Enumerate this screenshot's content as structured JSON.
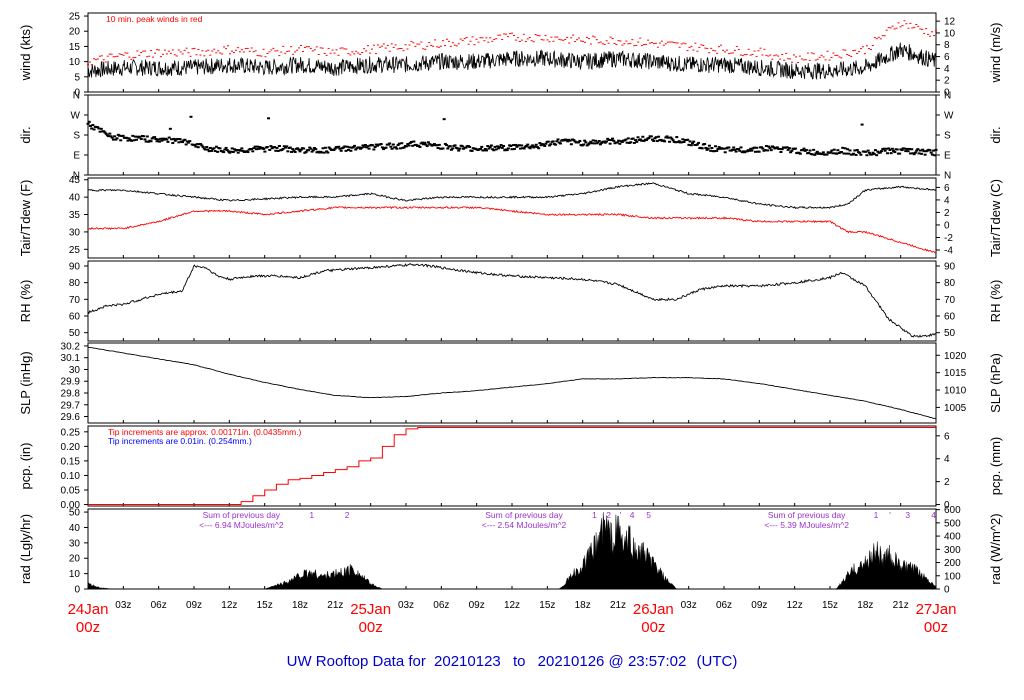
{
  "footer": {
    "prefix": "UW Rooftop Data for",
    "start": "20210123",
    "to": "to",
    "end": "20210126 @ 23:57:02",
    "tz": "(UTC)"
  },
  "colors": {
    "red": "#ff0000",
    "blue": "#0000ff",
    "purple": "#9933cc",
    "navy": "#0000cc",
    "black": "#000000"
  },
  "time_axis": {
    "hours_total": 72,
    "minor_ticks": [
      "03z",
      "06z",
      "09z",
      "12z",
      "15z",
      "18z",
      "21z"
    ],
    "day_labels": [
      {
        "hour": 0,
        "date": "24Jan",
        "z": "00z"
      },
      {
        "hour": 24,
        "date": "25Jan",
        "z": "00z"
      },
      {
        "hour": 48,
        "date": "26Jan",
        "z": "00z"
      },
      {
        "hour": 72,
        "date": "27Jan",
        "z": "00z"
      }
    ]
  },
  "chart_data": [
    {
      "type": "line",
      "panel": "wind",
      "ylabel_left": "wind (kts)",
      "ylabel_right": "wind (m/s)",
      "ylim": [
        0,
        26
      ],
      "left_ticks": [
        0,
        5,
        10,
        15,
        20,
        25
      ],
      "right_ticks": [
        0,
        2,
        4,
        6,
        8,
        10,
        12
      ],
      "annotation": "10 min. peak winds in red",
      "series": [
        {
          "x": [
            0,
            3,
            6,
            9,
            12,
            15,
            18,
            21,
            24,
            27,
            30,
            33,
            36,
            39,
            42,
            45,
            48,
            51,
            54,
            57,
            60,
            63,
            66,
            69,
            72
          ],
          "values": [
            7,
            8,
            8,
            8,
            9,
            8,
            9,
            8,
            9,
            9,
            10,
            10,
            11,
            11,
            10,
            11,
            10,
            9,
            9,
            8,
            7,
            7,
            8,
            14,
            10
          ]
        },
        {
          "x": [
            0,
            3,
            6,
            9,
            12,
            15,
            18,
            21,
            24,
            27,
            30,
            33,
            36,
            39,
            42,
            45,
            48,
            51,
            54,
            57,
            60,
            63,
            66,
            69,
            72
          ],
          "values": [
            10,
            12,
            13,
            13,
            14,
            13,
            14,
            13,
            14,
            15,
            16,
            17,
            18,
            18,
            17,
            17,
            16,
            15,
            14,
            13,
            11,
            12,
            14,
            23,
            19
          ]
        }
      ]
    },
    {
      "type": "scatter",
      "panel": "dir",
      "ylabel_left": "dir.",
      "ylabel_right": "dir.",
      "ylim": [
        0,
        360
      ],
      "tick_labels": [
        "N",
        "W",
        "S",
        "E",
        "N"
      ],
      "x": [
        0,
        2,
        4,
        6,
        8,
        10,
        12,
        14,
        16,
        18,
        20,
        22,
        24,
        26,
        28,
        30,
        32,
        34,
        36,
        38,
        40,
        42,
        44,
        46,
        48,
        50,
        52,
        54,
        56,
        58,
        60,
        62,
        64,
        66,
        68,
        70,
        72
      ],
      "values": [
        230,
        170,
        165,
        160,
        150,
        120,
        110,
        115,
        120,
        112,
        110,
        120,
        125,
        130,
        140,
        130,
        120,
        120,
        125,
        130,
        150,
        145,
        150,
        155,
        165,
        160,
        130,
        110,
        115,
        120,
        110,
        100,
        110,
        95,
        110,
        105,
        100
      ]
    },
    {
      "type": "line",
      "panel": "temp",
      "ylabel_left": "Tair/Tdew (F)",
      "ylabel_right": "Tair/Tdew (C)",
      "ylim": [
        22.5,
        45.5
      ],
      "left_ticks": [
        25,
        30,
        35,
        40,
        45
      ],
      "right_ticks": [
        -4,
        -2,
        0,
        2,
        4,
        6
      ],
      "series": [
        {
          "x": [
            0,
            3,
            6,
            9,
            12,
            15,
            18,
            21,
            24,
            27,
            30,
            33,
            36,
            39,
            42,
            45,
            48,
            51,
            54,
            57,
            60,
            63,
            64.5,
            66,
            69,
            72
          ],
          "values": [
            42,
            42,
            41,
            40,
            39,
            39.5,
            40,
            40,
            41,
            39,
            40,
            40,
            40,
            40,
            41,
            43,
            44,
            41,
            40,
            38,
            37,
            37,
            38,
            42,
            43,
            42
          ]
        },
        {
          "x": [
            0,
            3,
            6,
            9,
            12,
            15,
            18,
            21,
            24,
            27,
            30,
            33,
            36,
            39,
            42,
            45,
            48,
            51,
            54,
            57,
            60,
            63,
            64.5,
            66,
            69,
            72
          ],
          "values": [
            31,
            31,
            33,
            36,
            36,
            35,
            36,
            37,
            37,
            37,
            37,
            37,
            36,
            35,
            35,
            35,
            34,
            34,
            34,
            33,
            33,
            33,
            30,
            30,
            27,
            24
          ]
        }
      ]
    },
    {
      "type": "line",
      "panel": "rh",
      "ylabel_left": "RH (%)",
      "ylabel_right": "RH (%)",
      "ylim": [
        45,
        93
      ],
      "left_ticks": [
        50,
        60,
        70,
        80,
        90
      ],
      "right_ticks": [
        50,
        60,
        70,
        80,
        90
      ],
      "x": [
        0,
        1.5,
        3,
        6,
        8,
        9,
        10,
        11,
        12,
        14,
        16,
        18,
        20,
        24,
        26,
        28,
        30,
        33,
        36,
        39,
        42,
        45,
        48,
        50,
        52,
        54,
        57,
        60,
        63,
        64,
        66,
        68,
        70,
        71,
        72
      ],
      "values": [
        62,
        66,
        67,
        73,
        75,
        90,
        89,
        84,
        82,
        84,
        84,
        83,
        87,
        89,
        90,
        91,
        89,
        86,
        84,
        83,
        82,
        79,
        70,
        70,
        76,
        78,
        78,
        80,
        83,
        86,
        78,
        58,
        48,
        48,
        49
      ]
    },
    {
      "type": "line",
      "panel": "slp",
      "ylabel_left": "SLP (inHg)",
      "ylabel_right": "SLP (hPa)",
      "ylim": [
        29.545,
        30.225
      ],
      "left_ticks": [
        29.6,
        29.7,
        29.8,
        29.9,
        30.0,
        30.1,
        30.2
      ],
      "right_ticks": [
        1005,
        1010,
        1015,
        1020
      ],
      "x": [
        0,
        3,
        6,
        9,
        12,
        15,
        18,
        21,
        24,
        27,
        30,
        33,
        36,
        39,
        42,
        45,
        48,
        51,
        54,
        57,
        60,
        63,
        66,
        69,
        72
      ],
      "values": [
        30.19,
        30.14,
        30.09,
        30.04,
        29.96,
        29.89,
        29.83,
        29.78,
        29.76,
        29.77,
        29.8,
        29.82,
        29.85,
        29.88,
        29.92,
        29.92,
        29.93,
        29.93,
        29.92,
        29.88,
        29.83,
        29.78,
        29.73,
        29.66,
        29.58
      ]
    },
    {
      "type": "line",
      "panel": "pcp",
      "ylabel_left": "pcp. (in)",
      "ylabel_right": "pcp. (mm)",
      "ylim": [
        -0.005,
        0.27
      ],
      "left_ticks": [
        0,
        0.05,
        0.1,
        0.15,
        0.2,
        0.25
      ],
      "left_tick_labels": [
        "0.00",
        "0.05",
        "0.10",
        "0.15",
        "0.20",
        "0.25"
      ],
      "right_ticks": [
        0,
        2,
        4,
        6
      ],
      "notes": [
        {
          "text": "Tip increments are approx. 0.00171in. (0.0435mm.)",
          "color": "red"
        },
        {
          "text": "Tip increments are 0.01in. (0.254mm.)",
          "color": "blue"
        }
      ],
      "x": [
        0,
        12.5,
        13,
        14,
        15,
        16,
        17,
        18,
        19,
        20,
        21,
        22,
        23,
        24,
        25,
        26,
        27,
        28,
        72
      ],
      "values": [
        0,
        0,
        0.01,
        0.03,
        0.05,
        0.07,
        0.085,
        0.09,
        0.1,
        0.11,
        0.12,
        0.13,
        0.15,
        0.16,
        0.2,
        0.24,
        0.26,
        0.265,
        0.265
      ]
    },
    {
      "type": "area",
      "panel": "rad",
      "ylabel_left": "rad (Lgly/hr)",
      "ylabel_right": "rad (W/m^2)",
      "ylim": [
        0,
        52
      ],
      "left_ticks": [
        0,
        10,
        20,
        30,
        40,
        50
      ],
      "right_ticks": [
        0,
        100,
        200,
        300,
        400,
        500,
        600
      ],
      "annotations": [
        {
          "hour": 12,
          "line1": "Sum of previous day",
          "line2": "<--- 6.94 MJoules/m^2"
        },
        {
          "hour": 36,
          "line1": "Sum of previous day",
          "line2": "<--- 2.54 MJoules/m^2"
        },
        {
          "hour": 60,
          "line1": "Sum of previous day",
          "line2": "<--- 5.39 MJoules/m^2"
        }
      ],
      "markers": [
        {
          "hour": 19,
          "label": "1"
        },
        {
          "hour": 22,
          "label": "2"
        },
        {
          "hour": 43,
          "label": "1"
        },
        {
          "hour": 44.2,
          "label": "2"
        },
        {
          "hour": 45.2,
          "label": "'"
        },
        {
          "hour": 46.2,
          "label": "4"
        },
        {
          "hour": 47.6,
          "label": "5"
        },
        {
          "hour": 66.9,
          "label": "1"
        },
        {
          "hour": 68.1,
          "label": "'"
        },
        {
          "hour": 69.6,
          "label": "3"
        },
        {
          "hour": 71.8,
          "label": "4"
        }
      ],
      "x": [
        0,
        1,
        2,
        15,
        16,
        17,
        18,
        19,
        20,
        21,
        22,
        22.5,
        23,
        24,
        25,
        40,
        40.5,
        41,
        42,
        43,
        43.5,
        44,
        44.5,
        45,
        45.5,
        46,
        46.5,
        47,
        48,
        49,
        50,
        51,
        63.5,
        64,
        64.5,
        65,
        66,
        66.5,
        67,
        67.5,
        68,
        69,
        70,
        71,
        72
      ],
      "values": [
        4,
        1,
        0,
        0,
        3,
        6,
        11,
        13,
        10,
        12,
        14,
        17,
        12,
        4,
        0,
        0,
        4,
        10,
        18,
        32,
        45,
        50,
        39,
        48,
        34,
        40,
        28,
        30,
        20,
        8,
        0,
        0,
        0,
        5,
        11,
        15,
        20,
        26,
        32,
        22,
        27,
        18,
        16,
        10,
        2
      ]
    }
  ]
}
